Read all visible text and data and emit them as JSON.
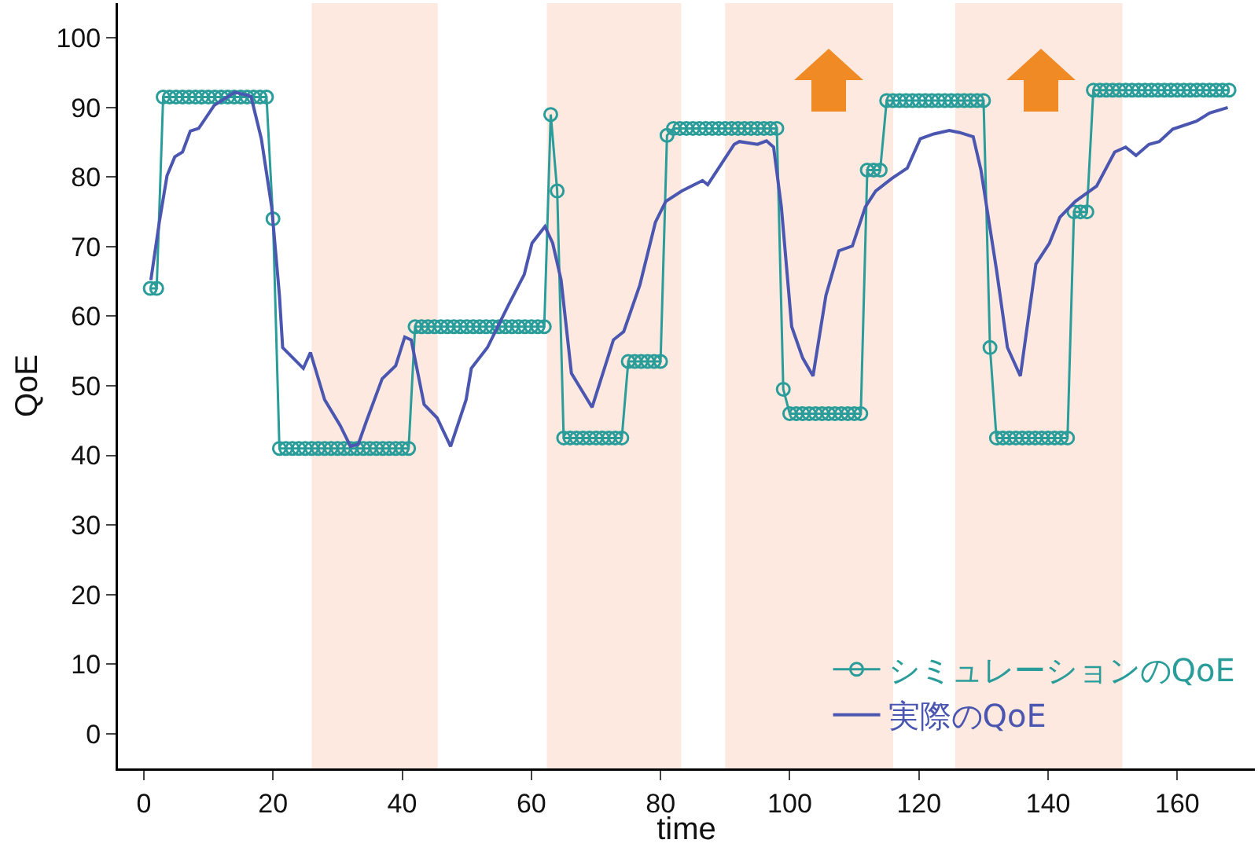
{
  "chart_data": {
    "type": "line",
    "xlabel": "time",
    "ylabel": "QoE",
    "xlim": [
      -4,
      172
    ],
    "xticks": [
      0,
      20,
      40,
      60,
      80,
      100,
      120,
      140,
      160
    ],
    "ylim": [
      -5,
      105
    ],
    "yticks": [
      0,
      10,
      20,
      30,
      40,
      50,
      60,
      70,
      80,
      90,
      100
    ],
    "grid": false,
    "legend": "bottom right",
    "bands": [
      {
        "axis": "x",
        "from": 26,
        "to": 45.5,
        "color": "#fde9df"
      },
      {
        "axis": "x",
        "from": 62.4,
        "to": 83.2,
        "color": "#fde9df"
      },
      {
        "axis": "x",
        "from": 90,
        "to": 116,
        "color": "#fde9df"
      },
      {
        "axis": "x",
        "from": 125.6,
        "to": 151.5,
        "color": "#fde9df"
      }
    ],
    "series": [
      {
        "name": "シミュレーションのQoE",
        "color": "#2a9d9a",
        "marker": "circle",
        "x": [
          1,
          2,
          3,
          4,
          5,
          6,
          7,
          8,
          9,
          10,
          11,
          12,
          13,
          14,
          15,
          16,
          17,
          18,
          19,
          20,
          21,
          22,
          23,
          24,
          25,
          26,
          27,
          28,
          29,
          30,
          31,
          32,
          33,
          34,
          35,
          36,
          37,
          38,
          39,
          40,
          41,
          42,
          43,
          44,
          45,
          46,
          47,
          48,
          49,
          50,
          51,
          52,
          53,
          54,
          55,
          56,
          57,
          58,
          59,
          60,
          61,
          62,
          63,
          64,
          65,
          66,
          67,
          68,
          69,
          70,
          71,
          72,
          73,
          74,
          75,
          76,
          77,
          78,
          79,
          80,
          81,
          82,
          83,
          84,
          85,
          86,
          87,
          88,
          89,
          90,
          91,
          92,
          93,
          94,
          95,
          96,
          97,
          98,
          99,
          100,
          101,
          102,
          103,
          104,
          105,
          106,
          107,
          108,
          109,
          110,
          111,
          112,
          113,
          114,
          115,
          116,
          117,
          118,
          119,
          120,
          121,
          122,
          123,
          124,
          125,
          126,
          127,
          128,
          129,
          130,
          131,
          132,
          133,
          134,
          135,
          136,
          137,
          138,
          139,
          140,
          141,
          142,
          143,
          144,
          145,
          146,
          147,
          148,
          149,
          150,
          151,
          152,
          153,
          154,
          155,
          156,
          157,
          158,
          159,
          160,
          161,
          162,
          163,
          164,
          165,
          166,
          167,
          168
        ],
        "values": [
          64,
          64,
          91.5,
          91.5,
          91.5,
          91.5,
          91.5,
          91.5,
          91.5,
          91.5,
          91.5,
          91.5,
          91.5,
          91.5,
          91.5,
          91.5,
          91.5,
          91.5,
          91.5,
          74,
          41,
          41,
          41,
          41,
          41,
          41,
          41,
          41,
          41,
          41,
          41,
          41,
          41,
          41,
          41,
          41,
          41,
          41,
          41,
          41,
          41,
          58.5,
          58.5,
          58.5,
          58.5,
          58.5,
          58.5,
          58.5,
          58.5,
          58.5,
          58.5,
          58.5,
          58.5,
          58.5,
          58.5,
          58.5,
          58.5,
          58.5,
          58.5,
          58.5,
          58.5,
          58.5,
          89,
          78,
          42.5,
          42.5,
          42.5,
          42.5,
          42.5,
          42.5,
          42.5,
          42.5,
          42.5,
          42.5,
          53.5,
          53.5,
          53.5,
          53.5,
          53.5,
          53.5,
          86,
          87,
          87,
          87,
          87,
          87,
          87,
          87,
          87,
          87,
          87,
          87,
          87,
          87,
          87,
          87,
          87,
          87,
          49.5,
          46,
          46,
          46,
          46,
          46,
          46,
          46,
          46,
          46,
          46,
          46,
          46,
          81,
          81,
          81,
          91,
          91,
          91,
          91,
          91,
          91,
          91,
          91,
          91,
          91,
          91,
          91,
          91,
          91,
          91,
          91,
          55.5,
          42.5,
          42.5,
          42.5,
          42.5,
          42.5,
          42.5,
          42.5,
          42.5,
          42.5,
          42.5,
          42.5,
          42.5,
          75,
          75,
          75,
          92.5,
          92.5,
          92.5,
          92.5,
          92.5,
          92.5,
          92.5,
          92.5,
          92.5,
          92.5,
          92.5,
          92.5,
          92.5,
          92.5,
          92.5,
          92.5,
          92.5,
          92.5,
          92.5,
          92.5,
          92.5,
          92.5
        ]
      },
      {
        "name": "実際のQoE",
        "color": "#4a56b0",
        "marker": "none",
        "x": [
          1.1,
          2.4,
          3.6,
          4.8,
          6,
          7.2,
          8.5,
          10.9,
          14.1,
          16.6,
          18.2,
          19.8,
          21,
          21.5,
          24.7,
          25.8,
          28,
          30.4,
          32,
          33.2,
          34.5,
          36.9,
          39,
          40.4,
          41.4,
          43.4,
          45.4,
          47.5,
          49.9,
          50.7,
          53.2,
          56.4,
          58.9,
          60.1,
          62.1,
          63.3,
          64.6,
          66.2,
          69.4,
          72.7,
          74.3,
          76.8,
          79.2,
          80.8,
          83.3,
          86.5,
          87.3,
          88.5,
          91.4,
          92.2,
          95,
          96.4,
          97.5,
          98.7,
          100.3,
          102,
          103.6,
          105.6,
          107.6,
          109.7,
          111.7,
          113.3,
          115.8,
          118.2,
          120.2,
          122.3,
          124.7,
          126.3,
          128.4,
          129.6,
          132,
          133.7,
          135.7,
          138.1,
          140.2,
          141.8,
          144.2,
          147.5,
          150.3,
          152,
          153.6,
          155.6,
          157.2,
          159.3,
          162.9,
          165,
          167.8
        ],
        "values": [
          65.2,
          73.5,
          80.2,
          82.9,
          83.6,
          86.6,
          87,
          90.3,
          92.2,
          91.6,
          85.5,
          75.7,
          63,
          55.5,
          52.5,
          54.8,
          48,
          44.3,
          41.3,
          41.6,
          45,
          51,
          52.9,
          57,
          56.6,
          47.3,
          45.4,
          41.3,
          48,
          52.5,
          55.5,
          61.5,
          66,
          70.5,
          72.9,
          70.5,
          65.2,
          51.8,
          46.9,
          56.6,
          57.8,
          64.5,
          73.5,
          76.5,
          78,
          79.5,
          78.9,
          80.6,
          84.7,
          85.1,
          84.7,
          85.2,
          84.3,
          75.7,
          58.5,
          54,
          51.4,
          63,
          69.4,
          70.1,
          75.7,
          78,
          79.8,
          81.3,
          85.5,
          86.2,
          86.7,
          86.4,
          85.8,
          81,
          66.7,
          55.5,
          51.4,
          67.5,
          70.5,
          74.2,
          76.5,
          78.7,
          83.6,
          84.3,
          83.1,
          84.7,
          85.1,
          86.9,
          88,
          89.2,
          90
        ]
      }
    ]
  }
}
